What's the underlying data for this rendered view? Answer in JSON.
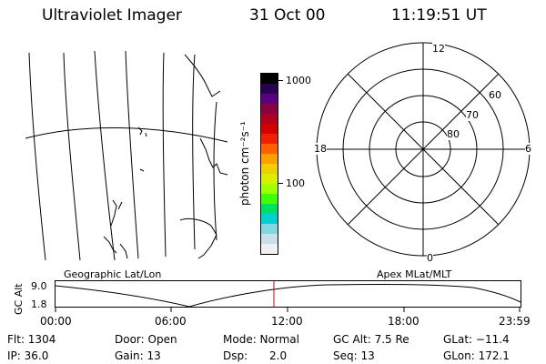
{
  "header": {
    "title": "Ultraviolet Imager",
    "date": "31 Oct 00",
    "time": "11:19:51 UT"
  },
  "colorbar": {
    "label": "photon cm⁻²s⁻¹",
    "ticks": [
      "1000",
      "100"
    ],
    "colors": [
      "#000000",
      "#2a0050",
      "#5a0080",
      "#8a0040",
      "#b00020",
      "#d40000",
      "#f02000",
      "#ff6000",
      "#ffa000",
      "#f0d000",
      "#d8f000",
      "#a0ff00",
      "#40ff00",
      "#00e060",
      "#00d0d0",
      "#80d8e0",
      "#c8e0e8",
      "#f0f0f0"
    ]
  },
  "polar_plot": {
    "mlt_labels": {
      "top": "12",
      "left": "18",
      "right": "6",
      "bottom": "0"
    },
    "lat_labels": [
      "60",
      "70",
      "80"
    ]
  },
  "map_labels": {
    "left": "Geographic Lat/Lon",
    "right": "Apex MLat/MLT"
  },
  "altitude_chart": {
    "ylabel": "GC Alt",
    "ytick_top": "9.0",
    "ytick_bottom": "1.8",
    "xticks": [
      "00:00",
      "06:00",
      "12:00",
      "18:00",
      "23:59"
    ],
    "marker_color": "#cc0000"
  },
  "info": {
    "flt": "Flt: 1304",
    "ip": "IP: 36.0",
    "door": "Door: Open",
    "gain": "Gain: 13",
    "mode": "Mode: Normal",
    "dsp_label": "Dsp:",
    "dsp_value": "2.0",
    "gc_alt": "GC Alt: 7.5 Re",
    "seq": "Seq: 13",
    "glat": "GLat: −11.4",
    "glon": "GLon: 172.1"
  }
}
